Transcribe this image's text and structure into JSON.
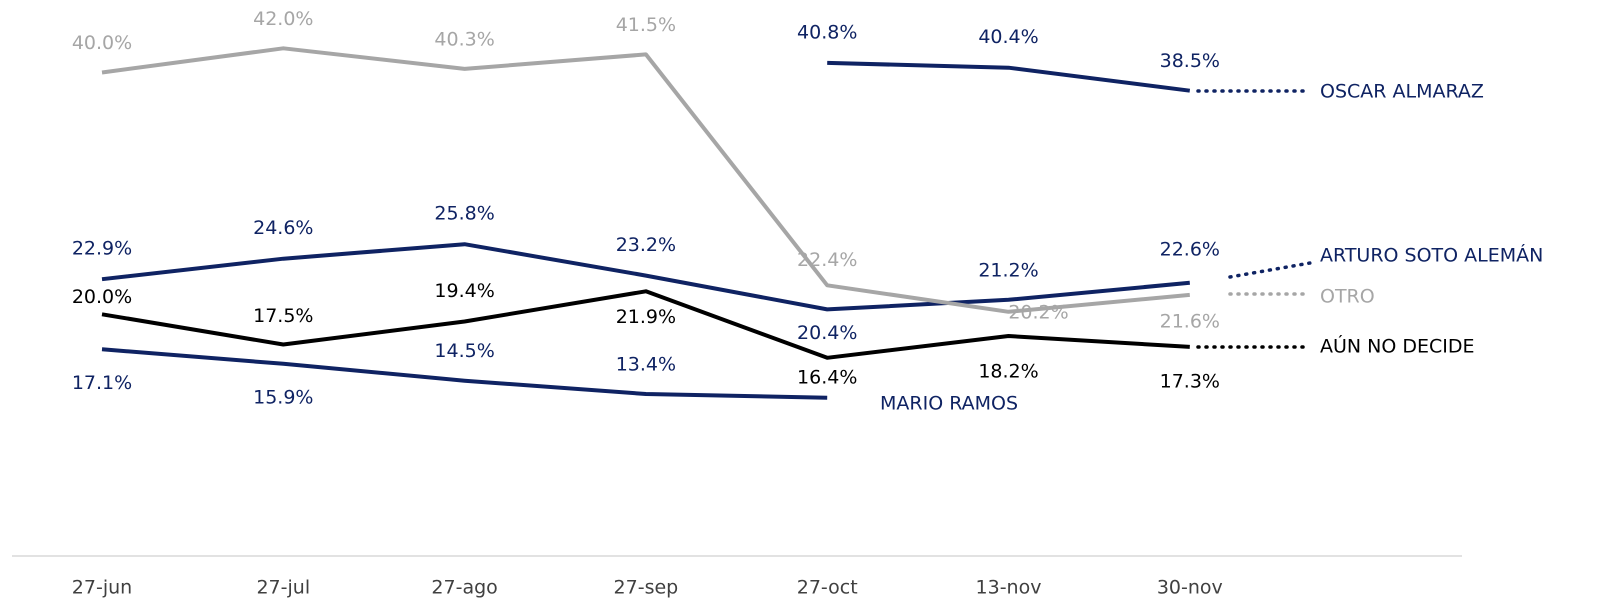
{
  "chart_data": {
    "type": "line",
    "categories": [
      "27-jun",
      "27-jul",
      "27-ago",
      "27-sep",
      "27-oct",
      "13-nov",
      "30-nov"
    ],
    "ylim": [
      0,
      46
    ],
    "grid": false,
    "series": [
      {
        "name": "OSCAR ALMARAZ",
        "color": "#0f2363",
        "values": [
          null,
          null,
          null,
          null,
          40.8,
          40.4,
          38.5
        ],
        "value_labels": [
          null,
          null,
          null,
          null,
          "40.8%",
          "40.4%",
          "38.5%"
        ]
      },
      {
        "name": "ARTURO SOTO ALEMÁN",
        "color": "#0f2363",
        "values": [
          22.9,
          24.6,
          25.8,
          23.2,
          20.4,
          21.2,
          22.6
        ],
        "value_labels": [
          "22.9%",
          "24.6%",
          "25.8%",
          "23.2%",
          "20.4%",
          "21.2%",
          "22.6%"
        ]
      },
      {
        "name": "OTRO",
        "color": "#a6a6a6",
        "values": [
          40.0,
          42.0,
          40.3,
          41.5,
          22.4,
          20.2,
          21.6
        ],
        "value_labels": [
          "40.0%",
          "42.0%",
          "40.3%",
          "41.5%",
          "22.4%",
          "20.2%",
          "21.6%"
        ]
      },
      {
        "name": "AÚN NO DECIDE",
        "color": "#000000",
        "values": [
          20.0,
          17.5,
          19.4,
          21.9,
          16.4,
          18.2,
          17.3
        ],
        "value_labels": [
          "20.0%",
          "17.5%",
          "19.4%",
          "21.9%",
          "16.4%",
          "18.2%",
          "17.3%"
        ]
      },
      {
        "name": "MARIO RAMOS",
        "color": "#0f2363",
        "values": [
          17.1,
          15.9,
          14.5,
          13.4,
          13.1,
          null,
          null
        ],
        "value_labels": [
          "17.1%",
          "15.9%",
          "14.5%",
          "13.4%",
          null,
          null,
          null
        ]
      }
    ]
  }
}
